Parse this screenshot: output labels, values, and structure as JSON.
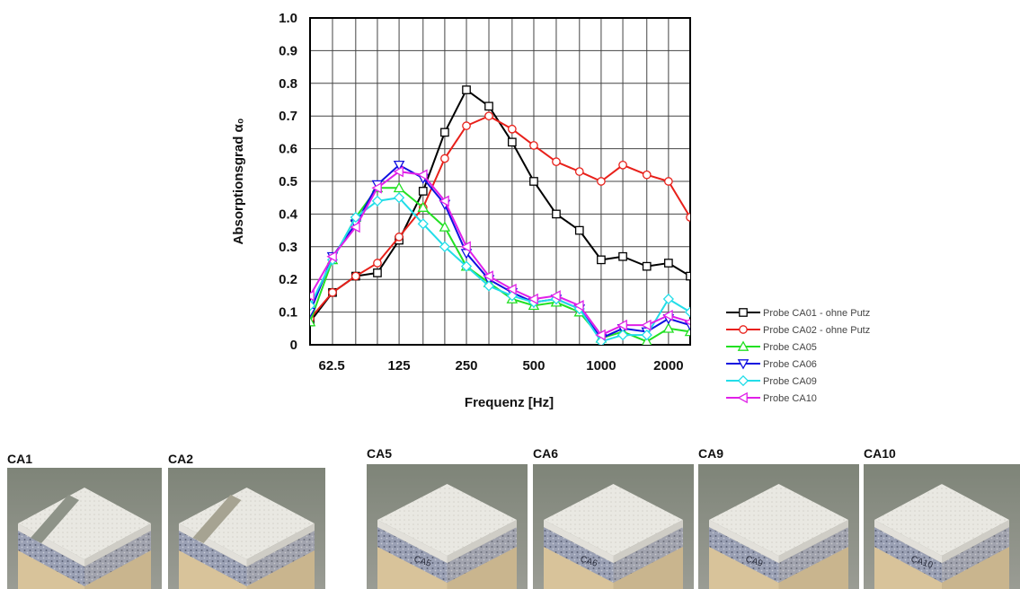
{
  "chart_data": {
    "type": "line",
    "xlabel": "Frequenz [Hz]",
    "ylabel": "Absorptionsgrad α₀",
    "xscale": "log",
    "xlim": [
      50,
      2500
    ],
    "ylim": [
      0,
      1.0
    ],
    "x_ticks": [
      62.5,
      125,
      250,
      500,
      1000,
      2000
    ],
    "x_tick_labels": [
      "62.5",
      "125",
      "250",
      "500",
      "1000",
      "2000"
    ],
    "y_ticks": [
      0,
      0.1,
      0.2,
      0.3,
      0.4,
      0.5,
      0.6,
      0.7,
      0.8,
      0.9,
      1.0
    ],
    "y_tick_labels": [
      "0",
      "0.1",
      "0.2",
      "0.3",
      "0.4",
      "0.5",
      "0.6",
      "0.7",
      "0.8",
      "0.9",
      "1.0"
    ],
    "grid": true,
    "legend_position": "right-bottom, outside",
    "x": [
      50,
      63,
      80,
      100,
      125,
      160,
      200,
      250,
      315,
      400,
      500,
      630,
      800,
      1000,
      1250,
      1600,
      2000,
      2500
    ],
    "series": [
      {
        "name": "Probe CA01 - ohne Putz",
        "color": "#000000",
        "marker": "square",
        "values": [
          0.07,
          0.16,
          0.21,
          0.22,
          0.32,
          0.47,
          0.65,
          0.78,
          0.73,
          0.62,
          0.5,
          0.4,
          0.35,
          0.26,
          0.27,
          0.24,
          0.25,
          0.21
        ]
      },
      {
        "name": "Probe CA02 - ohne Putz",
        "color": "#e8201a",
        "marker": "circle",
        "values": [
          0.08,
          0.16,
          0.21,
          0.25,
          0.33,
          0.42,
          0.57,
          0.67,
          0.7,
          0.66,
          0.61,
          0.56,
          0.53,
          0.5,
          0.55,
          0.52,
          0.5,
          0.39
        ]
      },
      {
        "name": "Probe CA05",
        "color": "#22e022",
        "marker": "triangle-up",
        "values": [
          0.07,
          0.26,
          0.39,
          0.48,
          0.48,
          0.42,
          0.36,
          0.24,
          0.19,
          0.14,
          0.12,
          0.13,
          0.1,
          0.02,
          0.04,
          0.01,
          0.05,
          0.04
        ]
      },
      {
        "name": "Probe CA06",
        "color": "#1010e0",
        "marker": "triangle-down",
        "values": [
          0.1,
          0.27,
          0.37,
          0.49,
          0.55,
          0.51,
          0.43,
          0.28,
          0.2,
          0.16,
          0.13,
          0.14,
          0.11,
          0.02,
          0.05,
          0.04,
          0.08,
          0.06
        ]
      },
      {
        "name": "Probe CA09",
        "color": "#22dde8",
        "marker": "diamond",
        "values": [
          0.12,
          0.26,
          0.39,
          0.44,
          0.45,
          0.37,
          0.3,
          0.24,
          0.18,
          0.15,
          0.13,
          0.14,
          0.11,
          0.01,
          0.03,
          0.03,
          0.14,
          0.1
        ]
      },
      {
        "name": "Probe CA10",
        "color": "#e020e8",
        "marker": "triangle-left",
        "values": [
          0.15,
          0.27,
          0.36,
          0.48,
          0.53,
          0.52,
          0.44,
          0.3,
          0.21,
          0.17,
          0.14,
          0.15,
          0.12,
          0.03,
          0.06,
          0.06,
          0.09,
          0.07
        ]
      }
    ]
  },
  "photos": [
    {
      "label": "CA1",
      "kind": "grooved",
      "slot": 0
    },
    {
      "label": "CA2",
      "kind": "grooved-rough",
      "slot": 1
    },
    {
      "label": "CA5",
      "kind": "plaster",
      "marking": "CA5",
      "slot": 2
    },
    {
      "label": "CA6",
      "kind": "plaster",
      "marking": "CA6",
      "slot": 3
    },
    {
      "label": "CA9",
      "kind": "plaster",
      "marking": "CA9",
      "slot": 4
    },
    {
      "label": "CA10",
      "kind": "plaster",
      "marking": "CA10",
      "slot": 5
    }
  ]
}
